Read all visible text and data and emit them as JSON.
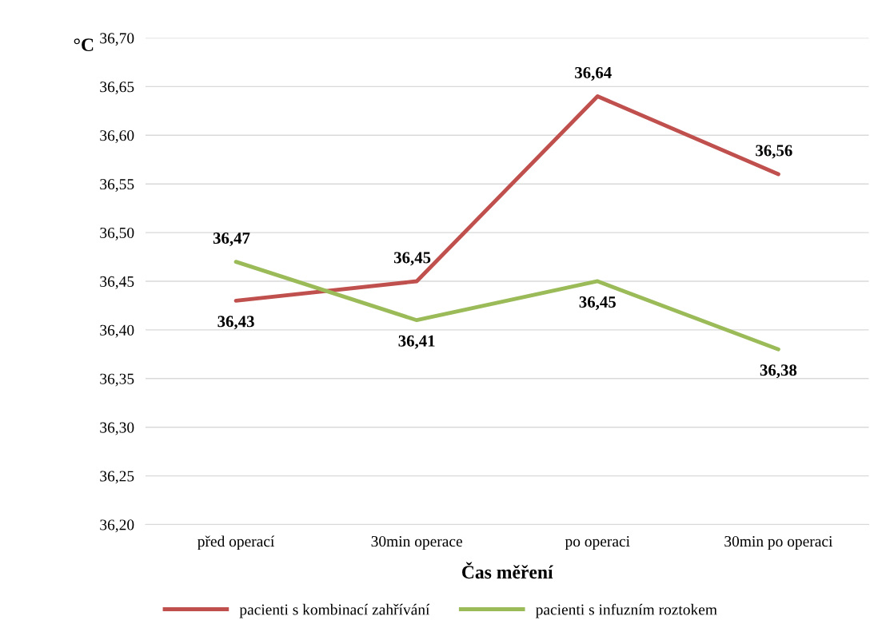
{
  "chart_data": {
    "type": "line",
    "xlabel": "Čas měření",
    "ylabel": "°C",
    "categories": [
      "před operací",
      "30min operace",
      "po operaci",
      "30min po operaci"
    ],
    "series": [
      {
        "name": "pacienti s kombinací zahřívání",
        "color": "#c0504d",
        "values": [
          36.43,
          36.45,
          36.64,
          36.56
        ],
        "value_labels": [
          "36,43",
          "36,45",
          "36,64",
          "36,56"
        ]
      },
      {
        "name": "pacienti s infuzním roztokem",
        "color": "#9bbb59",
        "values": [
          36.47,
          36.41,
          36.45,
          36.38
        ],
        "value_labels": [
          "36,47",
          "36,41",
          "36,45",
          "36,38"
        ]
      }
    ],
    "ylim": [
      36.2,
      36.7
    ],
    "yticks": [
      {
        "value": 36.2,
        "label": "36,20"
      },
      {
        "value": 36.25,
        "label": "36,25"
      },
      {
        "value": 36.3,
        "label": "36,30"
      },
      {
        "value": 36.35,
        "label": "36,35"
      },
      {
        "value": 36.4,
        "label": "36,40"
      },
      {
        "value": 36.45,
        "label": "36,45"
      },
      {
        "value": 36.5,
        "label": "36,50"
      },
      {
        "value": 36.55,
        "label": "36,55"
      },
      {
        "value": 36.6,
        "label": "36,60"
      },
      {
        "value": 36.65,
        "label": "36,65"
      },
      {
        "value": 36.7,
        "label": "36,70"
      }
    ],
    "grid": "y",
    "legend": "bottom",
    "marker": "none",
    "line_style": "solid"
  }
}
